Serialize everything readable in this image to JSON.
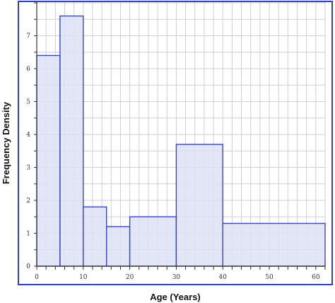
{
  "chart_data": {
    "type": "histogram",
    "xlabel": "Age (Years)",
    "ylabel": "Frequency Density",
    "xlim": [
      0,
      62
    ],
    "ylim": [
      0,
      8
    ],
    "x_ticks": [
      0,
      10,
      20,
      30,
      40,
      50,
      60
    ],
    "y_ticks": [
      0,
      1,
      2,
      3,
      4,
      5,
      6,
      7
    ],
    "grid": true,
    "bins": [
      {
        "start": 0,
        "end": 5,
        "value": 6.4
      },
      {
        "start": 5,
        "end": 10,
        "value": 7.6
      },
      {
        "start": 10,
        "end": 15,
        "value": 1.8
      },
      {
        "start": 15,
        "end": 20,
        "value": 1.2
      },
      {
        "start": 20,
        "end": 30,
        "value": 1.5
      },
      {
        "start": 30,
        "end": 40,
        "value": 3.7
      },
      {
        "start": 40,
        "end": 62,
        "value": 1.3
      }
    ],
    "colors": {
      "bar_fill": "#dde2f6",
      "bar_stroke": "#3346c9",
      "frame": "#2f3fbf",
      "grid": "#cfcfcf",
      "axis": "#333333"
    }
  }
}
